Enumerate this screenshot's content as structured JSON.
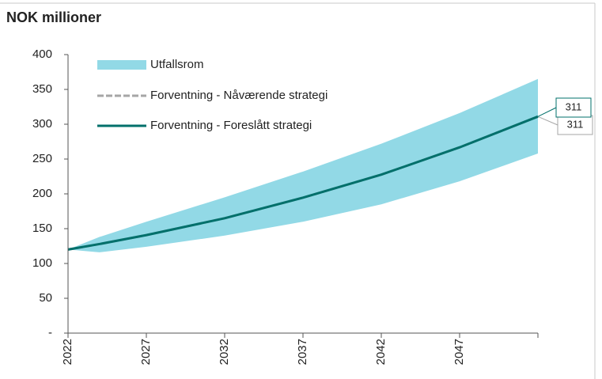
{
  "chart_data": {
    "type": "line",
    "title": "NOK millioner",
    "x": [
      2022,
      2024,
      2027,
      2032,
      2037,
      2042,
      2047,
      2052
    ],
    "xlim": [
      2022,
      2052
    ],
    "xticks": [
      2022,
      2027,
      2032,
      2037,
      2042,
      2047
    ],
    "ylim": [
      0,
      400
    ],
    "yticks": [
      {
        "value": 0,
        "label": "-"
      },
      50,
      100,
      150,
      200,
      250,
      300,
      350,
      400
    ],
    "series": [
      {
        "name": "Utfallsrom",
        "color": "#92d9e6",
        "lower": [
          120,
          116,
          124,
          140,
          160,
          185,
          218,
          258
        ],
        "upper": [
          120,
          138,
          160,
          195,
          232,
          272,
          316,
          365
        ]
      },
      {
        "name": "Forventning - Nåværende strategi",
        "color": "#a6a6a6",
        "values": [
          120,
          127.9,
          140.8,
          165,
          194.5,
          227.6,
          266.8,
          311
        ],
        "value_labels": [
          null,
          null,
          null,
          null,
          null,
          null,
          null,
          "311"
        ]
      },
      {
        "name": "Forventning - Foreslått strategi",
        "color": "#00706b",
        "values": [
          120,
          127.9,
          140.8,
          165,
          194.5,
          227.6,
          266.8,
          311
        ],
        "value_labels": [
          null,
          null,
          null,
          null,
          null,
          null,
          null,
          "311"
        ]
      }
    ]
  }
}
